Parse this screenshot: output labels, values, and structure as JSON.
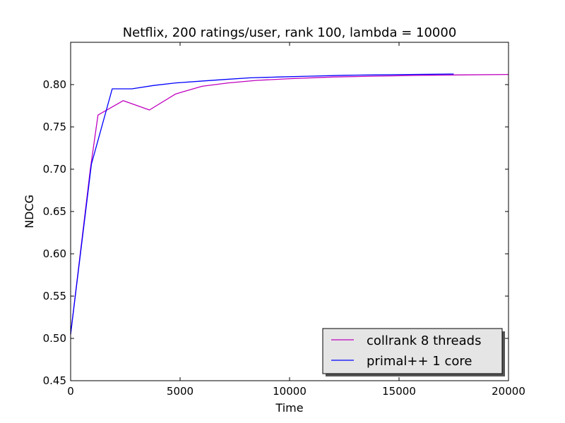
{
  "chart_data": {
    "type": "line",
    "title": "Netflix, 200 ratings/user, rank 100, lambda = 10000",
    "xlabel": "Time",
    "ylabel": "NDCG",
    "xlim": [
      0,
      20000
    ],
    "ylim": [
      0.45,
      0.85
    ],
    "xticks": [
      0,
      5000,
      10000,
      15000,
      20000
    ],
    "xtick_labels": [
      "0",
      "5000",
      "10000",
      "15000",
      "20000"
    ],
    "yticks": [
      0.45,
      0.5,
      0.55,
      0.6,
      0.65,
      0.7,
      0.75,
      0.8
    ],
    "ytick_labels": [
      "0.45",
      "0.50",
      "0.55",
      "0.60",
      "0.65",
      "0.70",
      "0.75",
      "0.80"
    ],
    "grid": false,
    "legend_position": "bottom-right",
    "series": [
      {
        "name": "collrank 8 threads",
        "color": "#bf00bf",
        "x": [
          0,
          900,
          1250,
          2400,
          3600,
          4800,
          6000,
          7200,
          8500,
          10000,
          12000,
          14000,
          16000,
          18000,
          20000
        ],
        "y": [
          0.505,
          0.7,
          0.764,
          0.781,
          0.77,
          0.789,
          0.798,
          0.802,
          0.805,
          0.807,
          0.809,
          0.81,
          0.811,
          0.8115,
          0.812
        ]
      },
      {
        "name": "primal++ 1 core",
        "color": "#0000ff",
        "x": [
          0,
          950,
          1900,
          2800,
          3800,
          4800,
          5900,
          7000,
          8200,
          9500,
          11000,
          12500,
          14000,
          15500,
          17500
        ],
        "y": [
          0.505,
          0.706,
          0.795,
          0.795,
          0.799,
          0.802,
          0.804,
          0.806,
          0.808,
          0.809,
          0.81,
          0.811,
          0.8115,
          0.812,
          0.8125
        ]
      }
    ]
  }
}
